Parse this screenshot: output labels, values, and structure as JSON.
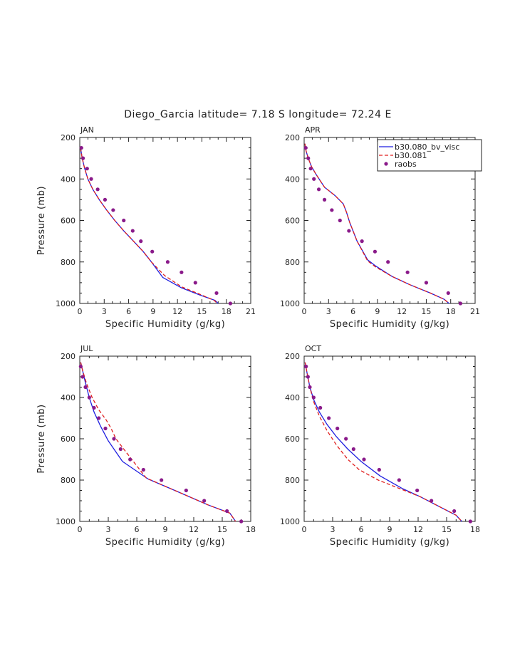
{
  "figure": {
    "title": "Diego_Garcia  latitude= 7.18 S longitude= 72.24 E"
  },
  "legend": {
    "entries": [
      {
        "label": "b30.080_bv_visc",
        "color": "#1f1fe0",
        "style": "solid"
      },
      {
        "label": "b30.081",
        "color": "#e01f1f",
        "style": "dashed"
      },
      {
        "label": "raobs",
        "color": "#8a1a8a",
        "style": "dots"
      }
    ]
  },
  "chart_data": [
    {
      "type": "line",
      "panel": "JAN",
      "xlabel": "Specific Humidity (g/kg)",
      "ylabel": "Pressure (mb)",
      "xlim": [
        0,
        21
      ],
      "ylim": [
        200,
        1000
      ],
      "y_inverted": true,
      "xticks": [
        "0",
        "3",
        "6",
        "9",
        "12",
        "15",
        "18",
        "21"
      ],
      "yticks": [
        "200",
        "400",
        "600",
        "800",
        "1000"
      ],
      "series": [
        {
          "name": "b30.080_bv_visc",
          "color": "#1f1fe0",
          "style": "solid",
          "x": [
            0.1,
            0.3,
            0.6,
            1.0,
            1.6,
            2.4,
            3.3,
            4.3,
            5.4,
            6.6,
            7.8,
            8.8,
            10.2,
            12.5,
            14.8,
            16.6,
            17.0
          ],
          "y": [
            250,
            300,
            350,
            400,
            450,
            500,
            550,
            600,
            650,
            700,
            750,
            800,
            875,
            925,
            960,
            985,
            1000
          ]
        },
        {
          "name": "b30.081",
          "color": "#e01f1f",
          "style": "dashed",
          "x": [
            0.1,
            0.3,
            0.6,
            1.0,
            1.6,
            2.4,
            3.3,
            4.3,
            5.4,
            6.6,
            7.8,
            8.8,
            10.4,
            12.5,
            14.7,
            16.5,
            16.9
          ],
          "y": [
            250,
            300,
            350,
            400,
            450,
            500,
            550,
            600,
            650,
            700,
            750,
            800,
            865,
            920,
            955,
            985,
            1000
          ]
        },
        {
          "name": "raobs",
          "color": "#8a1a8a",
          "style": "dots",
          "x": [
            0.2,
            0.4,
            0.9,
            1.4,
            2.2,
            3.1,
            4.1,
            5.4,
            6.5,
            7.5,
            8.9,
            10.8,
            12.5,
            14.2,
            16.8,
            18.5
          ],
          "y": [
            250,
            300,
            350,
            400,
            450,
            500,
            550,
            600,
            650,
            700,
            750,
            800,
            850,
            900,
            950,
            1000
          ]
        }
      ]
    },
    {
      "type": "line",
      "panel": "APR",
      "xlabel": "Specific Humidity (g/kg)",
      "ylabel": "",
      "xlim": [
        0,
        21
      ],
      "ylim": [
        200,
        1000
      ],
      "y_inverted": true,
      "xticks": [
        "0",
        "3",
        "6",
        "9",
        "12",
        "15",
        "18",
        "21"
      ],
      "yticks": [
        "200",
        "400",
        "600",
        "800",
        "1000"
      ],
      "series": [
        {
          "name": "b30.080_bv_visc",
          "color": "#1f1fe0",
          "style": "solid",
          "x": [
            0.1,
            0.2,
            0.5,
            0.9,
            1.5,
            2.5,
            3.8,
            4.8,
            5.2,
            5.6,
            6.5,
            7.8,
            8.8,
            10.8,
            13.0,
            15.5,
            17.2,
            17.8
          ],
          "y": [
            230,
            260,
            300,
            340,
            380,
            440,
            480,
            520,
            560,
            610,
            700,
            790,
            820,
            870,
            910,
            950,
            980,
            1000
          ]
        },
        {
          "name": "b30.081",
          "color": "#e01f1f",
          "style": "dashed",
          "x": [
            0.1,
            0.2,
            0.5,
            0.9,
            1.5,
            2.5,
            3.8,
            4.8,
            5.2,
            5.6,
            6.5,
            7.8,
            8.8,
            10.8,
            13.0,
            15.5,
            17.2,
            17.8
          ],
          "y": [
            230,
            260,
            300,
            340,
            380,
            440,
            480,
            520,
            560,
            610,
            700,
            795,
            825,
            870,
            910,
            950,
            980,
            1000
          ]
        },
        {
          "name": "raobs",
          "color": "#8a1a8a",
          "style": "dots",
          "x": [
            0.2,
            0.5,
            0.8,
            1.2,
            1.8,
            2.5,
            3.4,
            4.4,
            5.5,
            7.1,
            8.7,
            10.3,
            12.7,
            15.0,
            17.7,
            19.2
          ],
          "y": [
            250,
            300,
            350,
            400,
            450,
            500,
            550,
            600,
            650,
            700,
            750,
            800,
            850,
            900,
            950,
            1000
          ]
        }
      ]
    },
    {
      "type": "line",
      "panel": "JUL",
      "xlabel": "Specific Humidity (g/kg)",
      "ylabel": "Pressure (mb)",
      "xlim": [
        0,
        18
      ],
      "ylim": [
        200,
        1000
      ],
      "y_inverted": true,
      "xticks": [
        "0",
        "3",
        "6",
        "9",
        "12",
        "15",
        "18"
      ],
      "yticks": [
        "200",
        "400",
        "600",
        "800",
        "1000"
      ],
      "series": [
        {
          "name": "b30.080_bv_visc",
          "color": "#1f1fe0",
          "style": "solid",
          "x": [
            0.1,
            0.3,
            0.6,
            1.0,
            1.5,
            2.2,
            3.0,
            4.5,
            7.2,
            10.5,
            13.5,
            15.8,
            16.4
          ],
          "y": [
            230,
            270,
            330,
            400,
            470,
            540,
            610,
            710,
            795,
            860,
            920,
            960,
            1000
          ]
        },
        {
          "name": "b30.081",
          "color": "#e01f1f",
          "style": "dashed",
          "x": [
            0.1,
            0.3,
            0.7,
            1.3,
            2.0,
            2.8,
            3.3,
            3.8,
            4.8,
            7.0,
            10.5,
            13.5,
            15.8,
            16.4
          ],
          "y": [
            230,
            270,
            330,
            400,
            460,
            510,
            550,
            600,
            660,
            790,
            860,
            920,
            960,
            1000
          ]
        },
        {
          "name": "raobs",
          "color": "#8a1a8a",
          "style": "dots",
          "x": [
            0.1,
            0.3,
            0.6,
            1.0,
            1.5,
            2.0,
            2.7,
            3.6,
            4.3,
            5.3,
            6.7,
            8.6,
            11.2,
            13.1,
            15.5,
            17.0
          ],
          "y": [
            250,
            300,
            350,
            400,
            450,
            500,
            550,
            600,
            650,
            700,
            750,
            800,
            850,
            900,
            950,
            1000
          ]
        }
      ]
    },
    {
      "type": "line",
      "panel": "OCT",
      "xlabel": "Specific Humidity (g/kg)",
      "ylabel": "",
      "xlim": [
        0,
        18
      ],
      "ylim": [
        200,
        1000
      ],
      "y_inverted": true,
      "xticks": [
        "0",
        "3",
        "6",
        "9",
        "12",
        "15",
        "18"
      ],
      "yticks": [
        "200",
        "400",
        "600",
        "800",
        "1000"
      ],
      "series": [
        {
          "name": "b30.080_bv_visc",
          "color": "#1f1fe0",
          "style": "solid",
          "x": [
            0.1,
            0.3,
            0.6,
            1.0,
            1.6,
            2.4,
            3.4,
            4.6,
            6.0,
            8.0,
            10.3,
            12.2,
            14.3,
            16.0,
            16.6
          ],
          "y": [
            230,
            280,
            350,
            410,
            470,
            530,
            590,
            650,
            710,
            780,
            840,
            880,
            930,
            970,
            1000
          ]
        },
        {
          "name": "b30.081",
          "color": "#e01f1f",
          "style": "dashed",
          "x": [
            0.1,
            0.3,
            0.6,
            1.0,
            1.6,
            2.4,
            3.4,
            4.6,
            5.8,
            7.8,
            10.0,
            12.2,
            14.3,
            16.0,
            16.6
          ],
          "y": [
            230,
            280,
            350,
            420,
            490,
            560,
            630,
            700,
            750,
            800,
            840,
            880,
            930,
            970,
            1000
          ]
        },
        {
          "name": "raobs",
          "color": "#8a1a8a",
          "style": "dots",
          "x": [
            0.2,
            0.4,
            0.6,
            1.0,
            1.7,
            2.6,
            3.5,
            4.4,
            5.2,
            6.3,
            7.9,
            10.0,
            11.9,
            13.4,
            15.8,
            17.5
          ],
          "y": [
            250,
            300,
            350,
            400,
            450,
            500,
            550,
            600,
            650,
            700,
            750,
            800,
            850,
            900,
            950,
            1000
          ]
        }
      ]
    }
  ]
}
